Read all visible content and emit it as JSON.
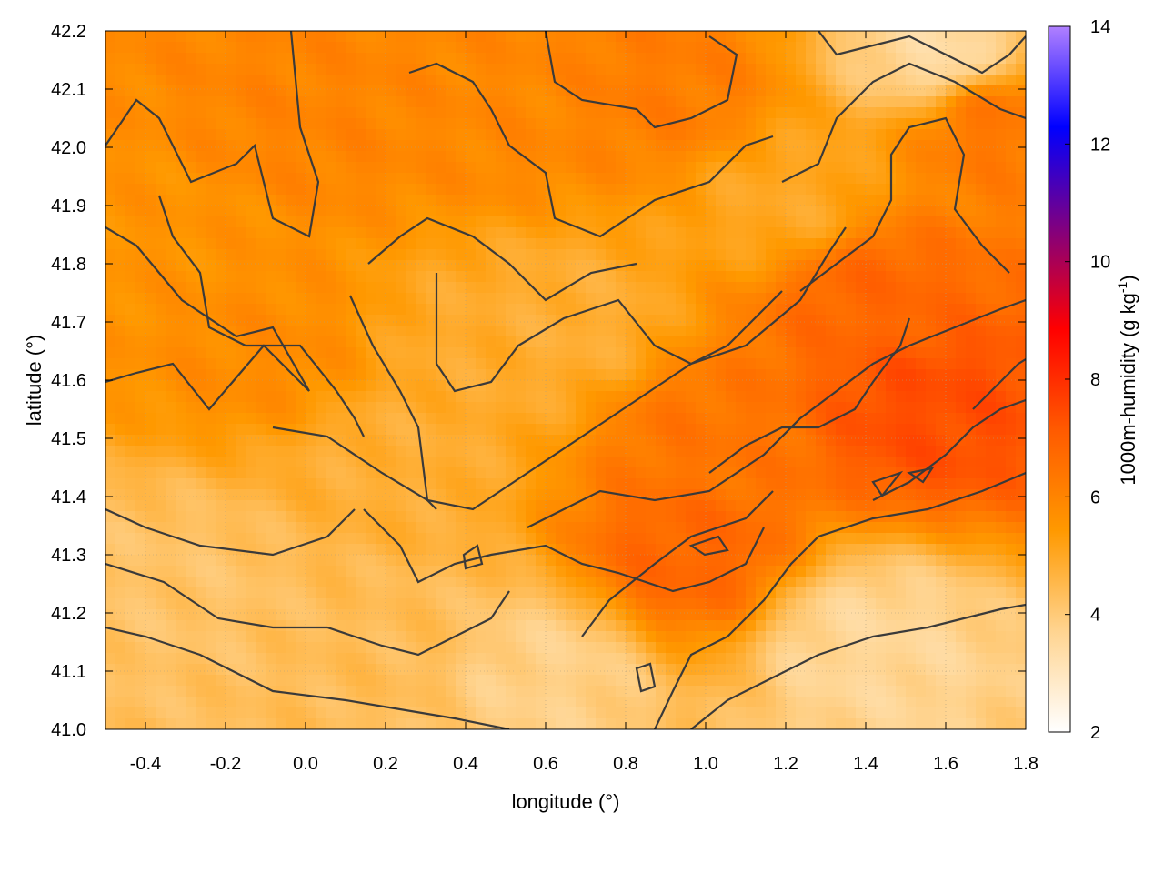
{
  "chart_data": {
    "type": "heatmap",
    "xlabel": "longitude (°)",
    "ylabel": "latitude (°)",
    "colorbar_label": "1000m-humidity (g kg",
    "colorbar_label_sup": "-1",
    "colorbar_label_end": ")",
    "xlim": [
      -0.5,
      1.8
    ],
    "ylim": [
      41.0,
      42.2
    ],
    "x_ticks": [
      -0.4,
      -0.2,
      0.0,
      0.2,
      0.4,
      0.6,
      0.8,
      1.0,
      1.2,
      1.4,
      1.6,
      1.8
    ],
    "x_tick_labels": [
      "-0.4",
      "-0.2",
      "0.0",
      "0.2",
      "0.4",
      "0.6",
      "0.8",
      "1.0",
      "1.2",
      "1.4",
      "1.6",
      "1.8"
    ],
    "y_ticks": [
      41.0,
      41.1,
      41.2,
      41.3,
      41.4,
      41.5,
      41.6,
      41.7,
      41.8,
      41.9,
      42.0,
      42.1,
      42.2
    ],
    "y_tick_labels": [
      "41.0",
      "41.1",
      "41.2",
      "41.3",
      "41.4",
      "41.5",
      "41.6",
      "41.7",
      "41.8",
      "41.9",
      "42.0",
      "42.1",
      "42.2"
    ],
    "colorbar_range": [
      2,
      14
    ],
    "colorbar_ticks": [
      2,
      4,
      6,
      8,
      10,
      12,
      14
    ],
    "colorbar_tick_labels": [
      "2",
      "4",
      "6",
      "8",
      "10",
      "12",
      "14"
    ],
    "colormap": [
      "#ffffff",
      "#ffd490",
      "#ff9900",
      "#ff5a00",
      "#ff0000",
      "#800080",
      "#0000ff",
      "#b080ff"
    ],
    "grid": true,
    "contours": true,
    "field_regions": [
      {
        "lon": -0.35,
        "lat": 41.85,
        "value": 5.6
      },
      {
        "lon": -0.1,
        "lat": 41.65,
        "value": 5.8
      },
      {
        "lon": 0.0,
        "lat": 42.05,
        "value": 6.0
      },
      {
        "lon": 0.5,
        "lat": 42.05,
        "value": 5.9
      },
      {
        "lon": 0.9,
        "lat": 42.1,
        "value": 6.2
      },
      {
        "lon": 1.7,
        "lat": 42.05,
        "value": 6.4
      },
      {
        "lon": 1.55,
        "lat": 41.55,
        "value": 7.4
      },
      {
        "lon": 1.4,
        "lat": 41.75,
        "value": 6.8
      },
      {
        "lon": 1.0,
        "lat": 41.5,
        "value": 6.4
      },
      {
        "lon": 0.95,
        "lat": 41.3,
        "value": 6.8
      },
      {
        "lon": 0.2,
        "lat": 41.45,
        "value": 4.8
      },
      {
        "lon": 0.45,
        "lat": 41.65,
        "value": 4.9
      },
      {
        "lon": 0.65,
        "lat": 41.7,
        "value": 4.8
      },
      {
        "lon": -0.3,
        "lat": 41.25,
        "value": 4.2
      },
      {
        "lon": 0.2,
        "lat": 41.15,
        "value": 4.4
      },
      {
        "lon": 0.6,
        "lat": 41.1,
        "value": 3.8
      },
      {
        "lon": 1.4,
        "lat": 41.15,
        "value": 3.6
      },
      {
        "lon": 1.2,
        "lat": 41.9,
        "value": 5.0
      },
      {
        "lon": 1.6,
        "lat": 42.15,
        "value": 3.4
      }
    ]
  }
}
